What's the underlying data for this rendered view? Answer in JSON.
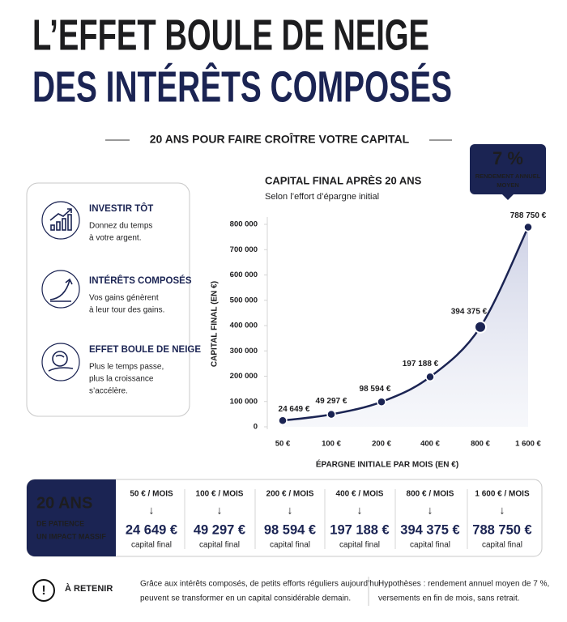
{
  "header": {
    "title_line1": "L’EFFET BOULE DE NEIGE",
    "title_line2": "DES INTÉRÊTS COMPOSÉS",
    "subtitle": "20 ANS POUR FAIRE CROÎTRE VOTRE CAPITAL"
  },
  "sidebar": {
    "items": [
      {
        "title": "INVESTIR TÔT",
        "text": [
          "Donnez du temps",
          "à votre argent."
        ]
      },
      {
        "title": "INTÉRÊTS COMPOSÉS",
        "text": [
          "Vos gains génèrent",
          "à leur tour des gains."
        ]
      },
      {
        "title": "EFFET BOULE DE NEIGE",
        "text": [
          "Plus le temps passe,",
          "plus la croissance",
          "s’accélère."
        ]
      }
    ]
  },
  "badge": {
    "value": "7 %",
    "label": [
      "RENDEMENT ANNUEL",
      "MOYEN"
    ]
  },
  "chart_data": {
    "type": "line",
    "title": "CAPITAL FINAL APRÈS 20 ANS",
    "subtitle": "Selon l’effort d’épargne initial",
    "x_label": "ÉPARGNE INITIALE PAR MOIS (EN €)",
    "y_label": "CAPITAL FINAL (EN €)",
    "categories": [
      "50 €",
      "100 €",
      "200 €",
      "400 €",
      "800 €",
      "1 600 €"
    ],
    "values": [
      24649,
      49297,
      98594,
      197188,
      394375,
      788750
    ],
    "value_labels": [
      "24 649 €",
      "49 297 €",
      "98 594 €",
      "197 188 €",
      "394 375 €",
      "788 750 €"
    ],
    "color": "#1b2453",
    "ylim": [
      0,
      800000
    ],
    "yticks": [
      0,
      {
        "value": 100000,
        "label": "100 000"
      },
      {
        "value": 200000,
        "label": "200 000"
      },
      {
        "value": 300000,
        "label": "300 000"
      },
      {
        "value": 400000,
        "label": "400 000"
      },
      {
        "value": 500000,
        "label": "500 000"
      },
      {
        "value": 600000,
        "label": "600 000"
      },
      {
        "value": 700000,
        "label": "700 000"
      },
      {
        "value": 800000,
        "label": "800 000"
      }
    ],
    "grid": false
  },
  "summary": {
    "title": "20 ANS",
    "subtitle": [
      "DE PATIENCE",
      "UN IMPACT MASSIF"
    ],
    "columns": [
      {
        "header": "50 € / MOIS",
        "arrow": "↓",
        "value": "24 649 €",
        "caption": "capital final"
      },
      {
        "header": "100 € / MOIS",
        "arrow": "↓",
        "value": "49 297 €",
        "caption": "capital final"
      },
      {
        "header": "200 € / MOIS",
        "arrow": "↓",
        "value": "98 594 €",
        "caption": "capital final"
      },
      {
        "header": "400 € / MOIS",
        "arrow": "↓",
        "value": "197 188 €",
        "caption": "capital final"
      },
      {
        "header": "800 € / MOIS",
        "arrow": "↓",
        "value": "394 375 €",
        "caption": "capital final"
      },
      {
        "header": "1 600 € / MOIS",
        "arrow": "↓",
        "value": "788 750 €",
        "caption": "capital final"
      }
    ]
  },
  "footer": {
    "icon": "!",
    "label": "À RETENIR",
    "text": [
      "Grâce aux intérêts composés, de petits efforts réguliers aujourd’hui",
      "peuvent se transformer en un capital considérable demain."
    ],
    "note": [
      "Hypothèses : rendement annuel moyen de 7 %,",
      "versements en fin de mois, sans retrait."
    ]
  }
}
